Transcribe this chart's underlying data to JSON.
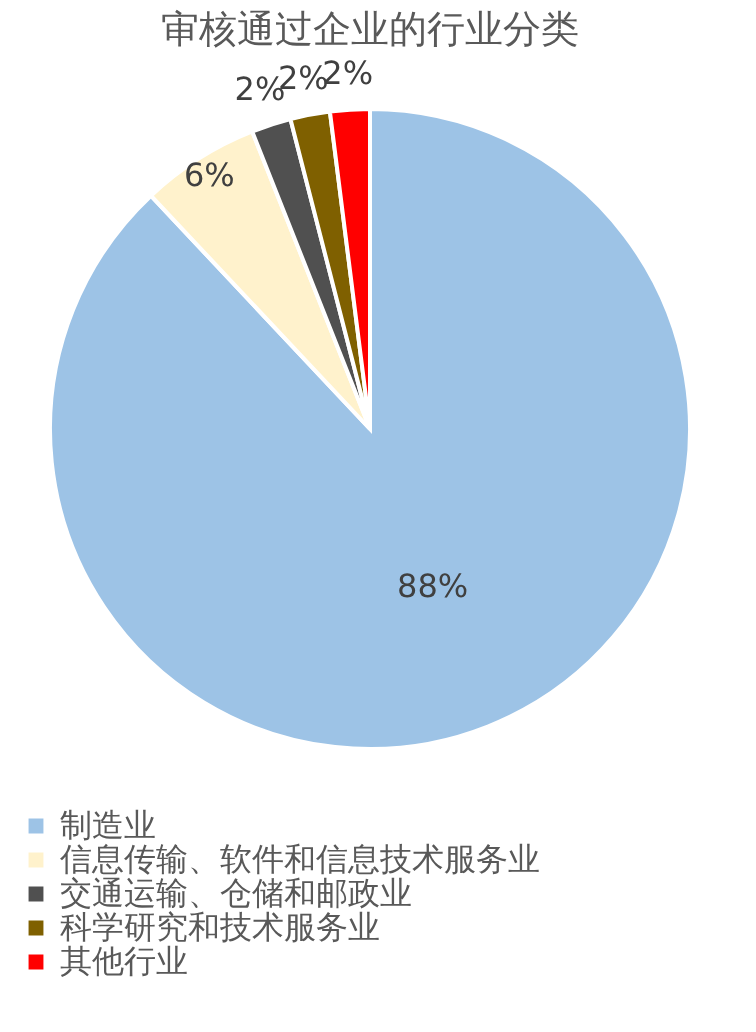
{
  "chart_data": {
    "type": "pie",
    "title": "审核通过企业的行业分类",
    "categories": [
      "制造业",
      "信息传输、软件和信息技术服务业",
      "交通运输、仓储和邮政业",
      "科学研究和技术服务业",
      "其他行业"
    ],
    "values": [
      88,
      6,
      2,
      2,
      2
    ],
    "colors": [
      "#9dc3e6",
      "#fff2cc",
      "#505050",
      "#7f6000",
      "#ff0000"
    ],
    "value_labels": [
      "88%",
      "6%",
      "2%",
      "2%",
      "2%"
    ],
    "legend": "bottom"
  }
}
